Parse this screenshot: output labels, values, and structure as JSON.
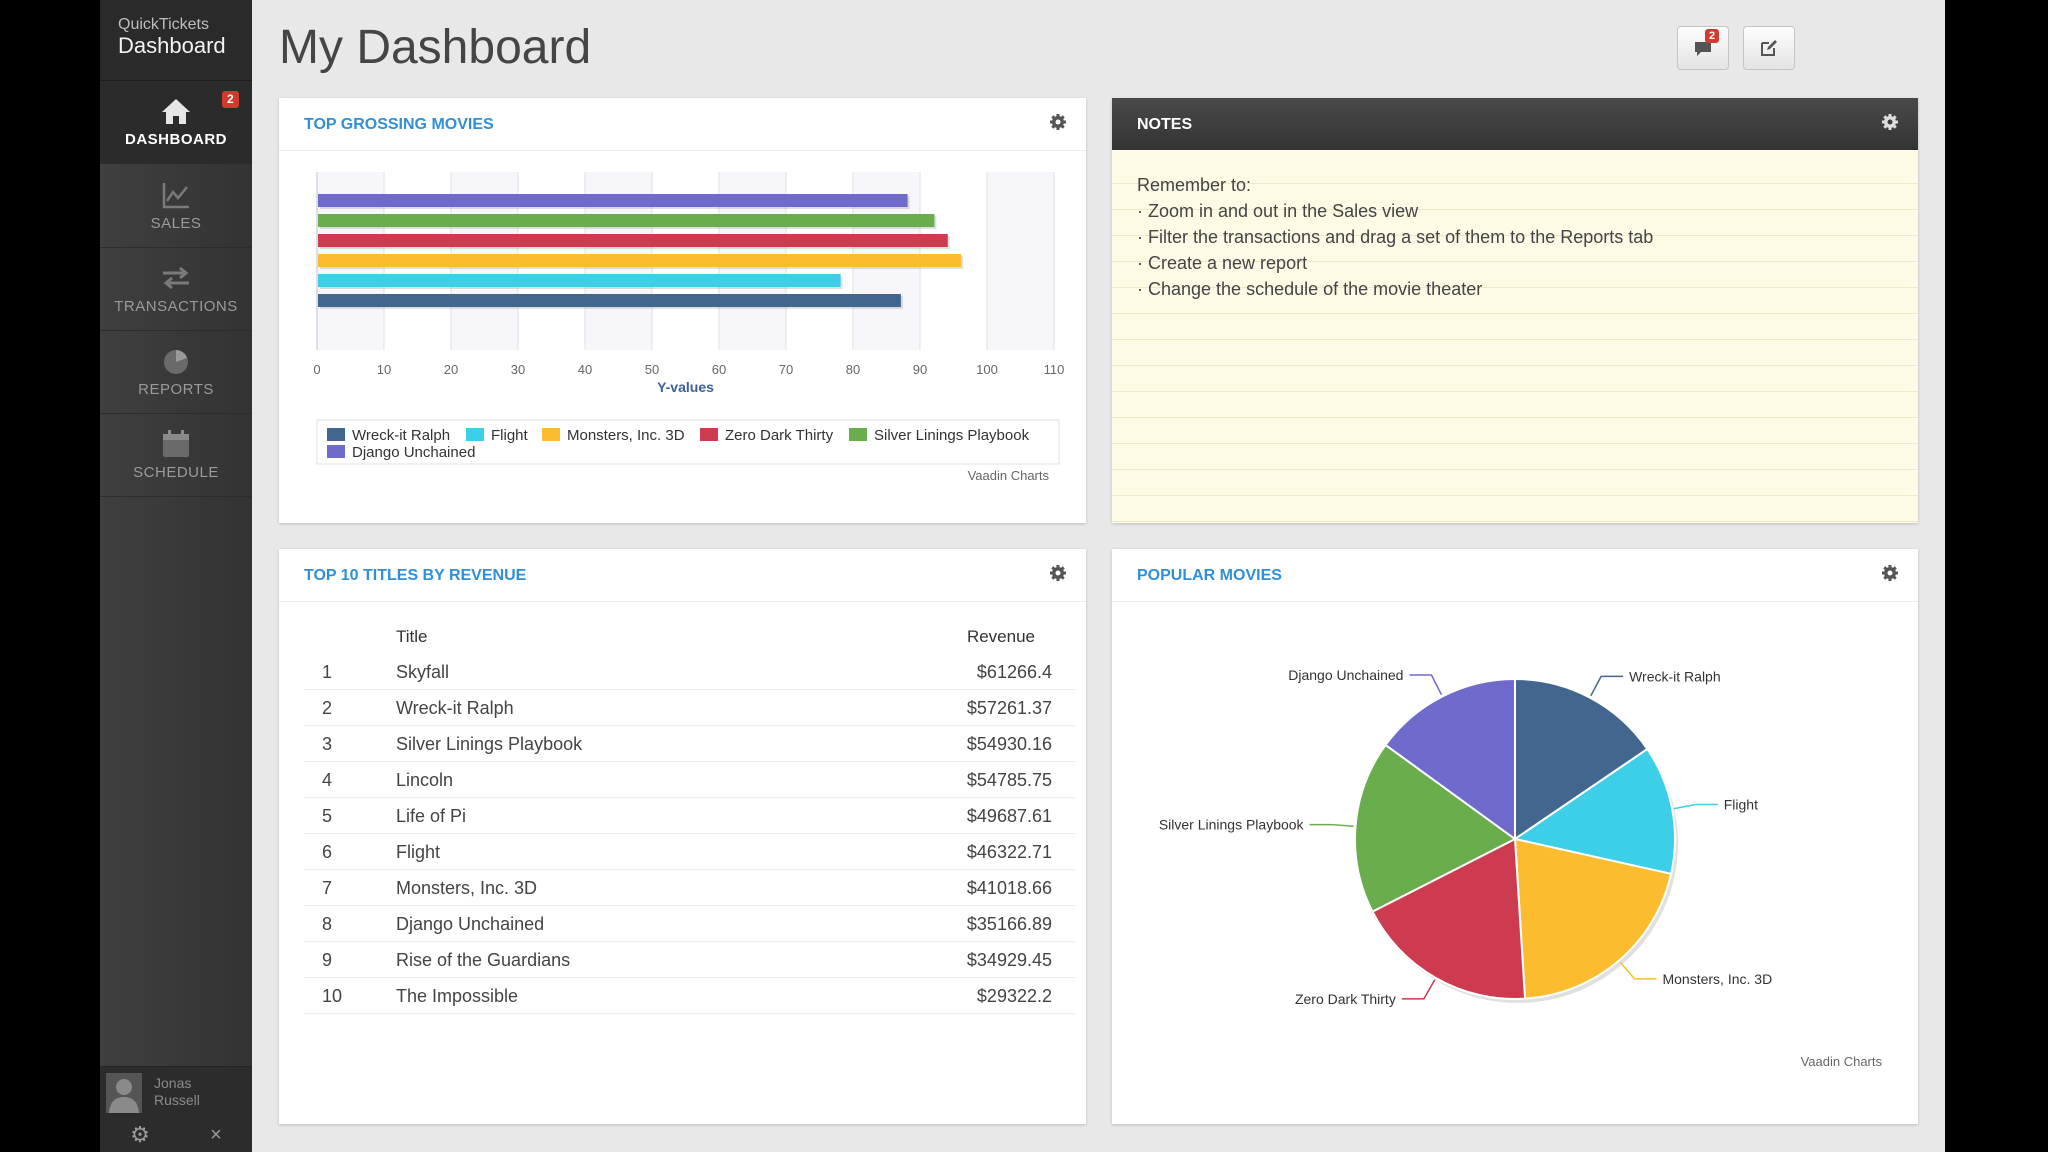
{
  "app": {
    "brand_small": "QuickTickets",
    "brand_large": "Dashboard"
  },
  "sidebar": {
    "items": [
      {
        "label": "DASHBOARD",
        "icon": "home-icon",
        "active": true,
        "badge": "2"
      },
      {
        "label": "SALES",
        "icon": "chart-icon"
      },
      {
        "label": "TRANSACTIONS",
        "icon": "transfer-arrows-icon"
      },
      {
        "label": "REPORTS",
        "icon": "pie-chart-icon"
      },
      {
        "label": "SCHEDULE",
        "icon": "calendar-icon"
      }
    ],
    "user": {
      "name": "Jonas\nRussell"
    }
  },
  "header": {
    "title": "My Dashboard",
    "notifications_badge": "2"
  },
  "panels": {
    "top_grossing": {
      "title": "TOP GROSSING MOVIES",
      "credit": "Vaadin Charts"
    },
    "notes": {
      "title": "NOTES",
      "lines": [
        "Remember to:",
        "· Zoom in and out in the Sales view",
        "· Filter the transactions and drag a set of them to the Reports tab",
        "· Create a new report",
        "· Change the schedule of the movie theater"
      ]
    },
    "top10": {
      "title": "TOP 10 TITLES BY REVENUE",
      "columns": [
        "Title",
        "Revenue"
      ],
      "rows": [
        {
          "rank": "1",
          "title": "Skyfall",
          "revenue": "$61266.4"
        },
        {
          "rank": "2",
          "title": "Wreck-it Ralph",
          "revenue": "$57261.37"
        },
        {
          "rank": "3",
          "title": "Silver Linings Playbook",
          "revenue": "$54930.16"
        },
        {
          "rank": "4",
          "title": "Lincoln",
          "revenue": "$54785.75"
        },
        {
          "rank": "5",
          "title": "Life of Pi",
          "revenue": "$49687.61"
        },
        {
          "rank": "6",
          "title": "Flight",
          "revenue": "$46322.71"
        },
        {
          "rank": "7",
          "title": "Monsters, Inc. 3D",
          "revenue": "$41018.66"
        },
        {
          "rank": "8",
          "title": "Django Unchained",
          "revenue": "$35166.89"
        },
        {
          "rank": "9",
          "title": "Rise of the Guardians",
          "revenue": "$34929.45"
        },
        {
          "rank": "10",
          "title": "The Impossible",
          "revenue": "$29322.2"
        }
      ]
    },
    "popular": {
      "title": "POPULAR MOVIES",
      "credit": "Vaadin Charts"
    }
  },
  "chart_data": [
    {
      "type": "bar",
      "orientation": "horizontal",
      "xlabel": "Y-values",
      "xlim": [
        0,
        110
      ],
      "ticks": [
        0,
        10,
        20,
        30,
        40,
        50,
        60,
        70,
        80,
        90,
        100,
        110
      ],
      "legend_position": "bottom",
      "series": [
        {
          "name": "Wreck-it Ralph",
          "value": 87,
          "color": "#43668f"
        },
        {
          "name": "Flight",
          "value": 78,
          "color": "#3ecfe8"
        },
        {
          "name": "Monsters, Inc. 3D",
          "value": 96,
          "color": "#fbbc30"
        },
        {
          "name": "Zero Dark Thirty",
          "value": 94,
          "color": "#cc3b4f"
        },
        {
          "name": "Silver Linings Playbook",
          "value": 92,
          "color": "#6aad4c"
        },
        {
          "name": "Django Unchained",
          "value": 88,
          "color": "#6e6bcc"
        }
      ]
    },
    {
      "type": "pie",
      "slices": [
        {
          "name": "Wreck-it Ralph",
          "value": 15.5,
          "color": "#43668f"
        },
        {
          "name": "Flight",
          "value": 13,
          "color": "#3ecfe8"
        },
        {
          "name": "Monsters, Inc. 3D",
          "value": 20.5,
          "color": "#fbbc30"
        },
        {
          "name": "Zero Dark Thirty",
          "value": 18.5,
          "color": "#cc3b4f"
        },
        {
          "name": "Silver Linings Playbook",
          "value": 17.5,
          "color": "#6aad4c"
        },
        {
          "name": "Django Unchained",
          "value": 15,
          "color": "#6e6bcc"
        }
      ]
    }
  ]
}
